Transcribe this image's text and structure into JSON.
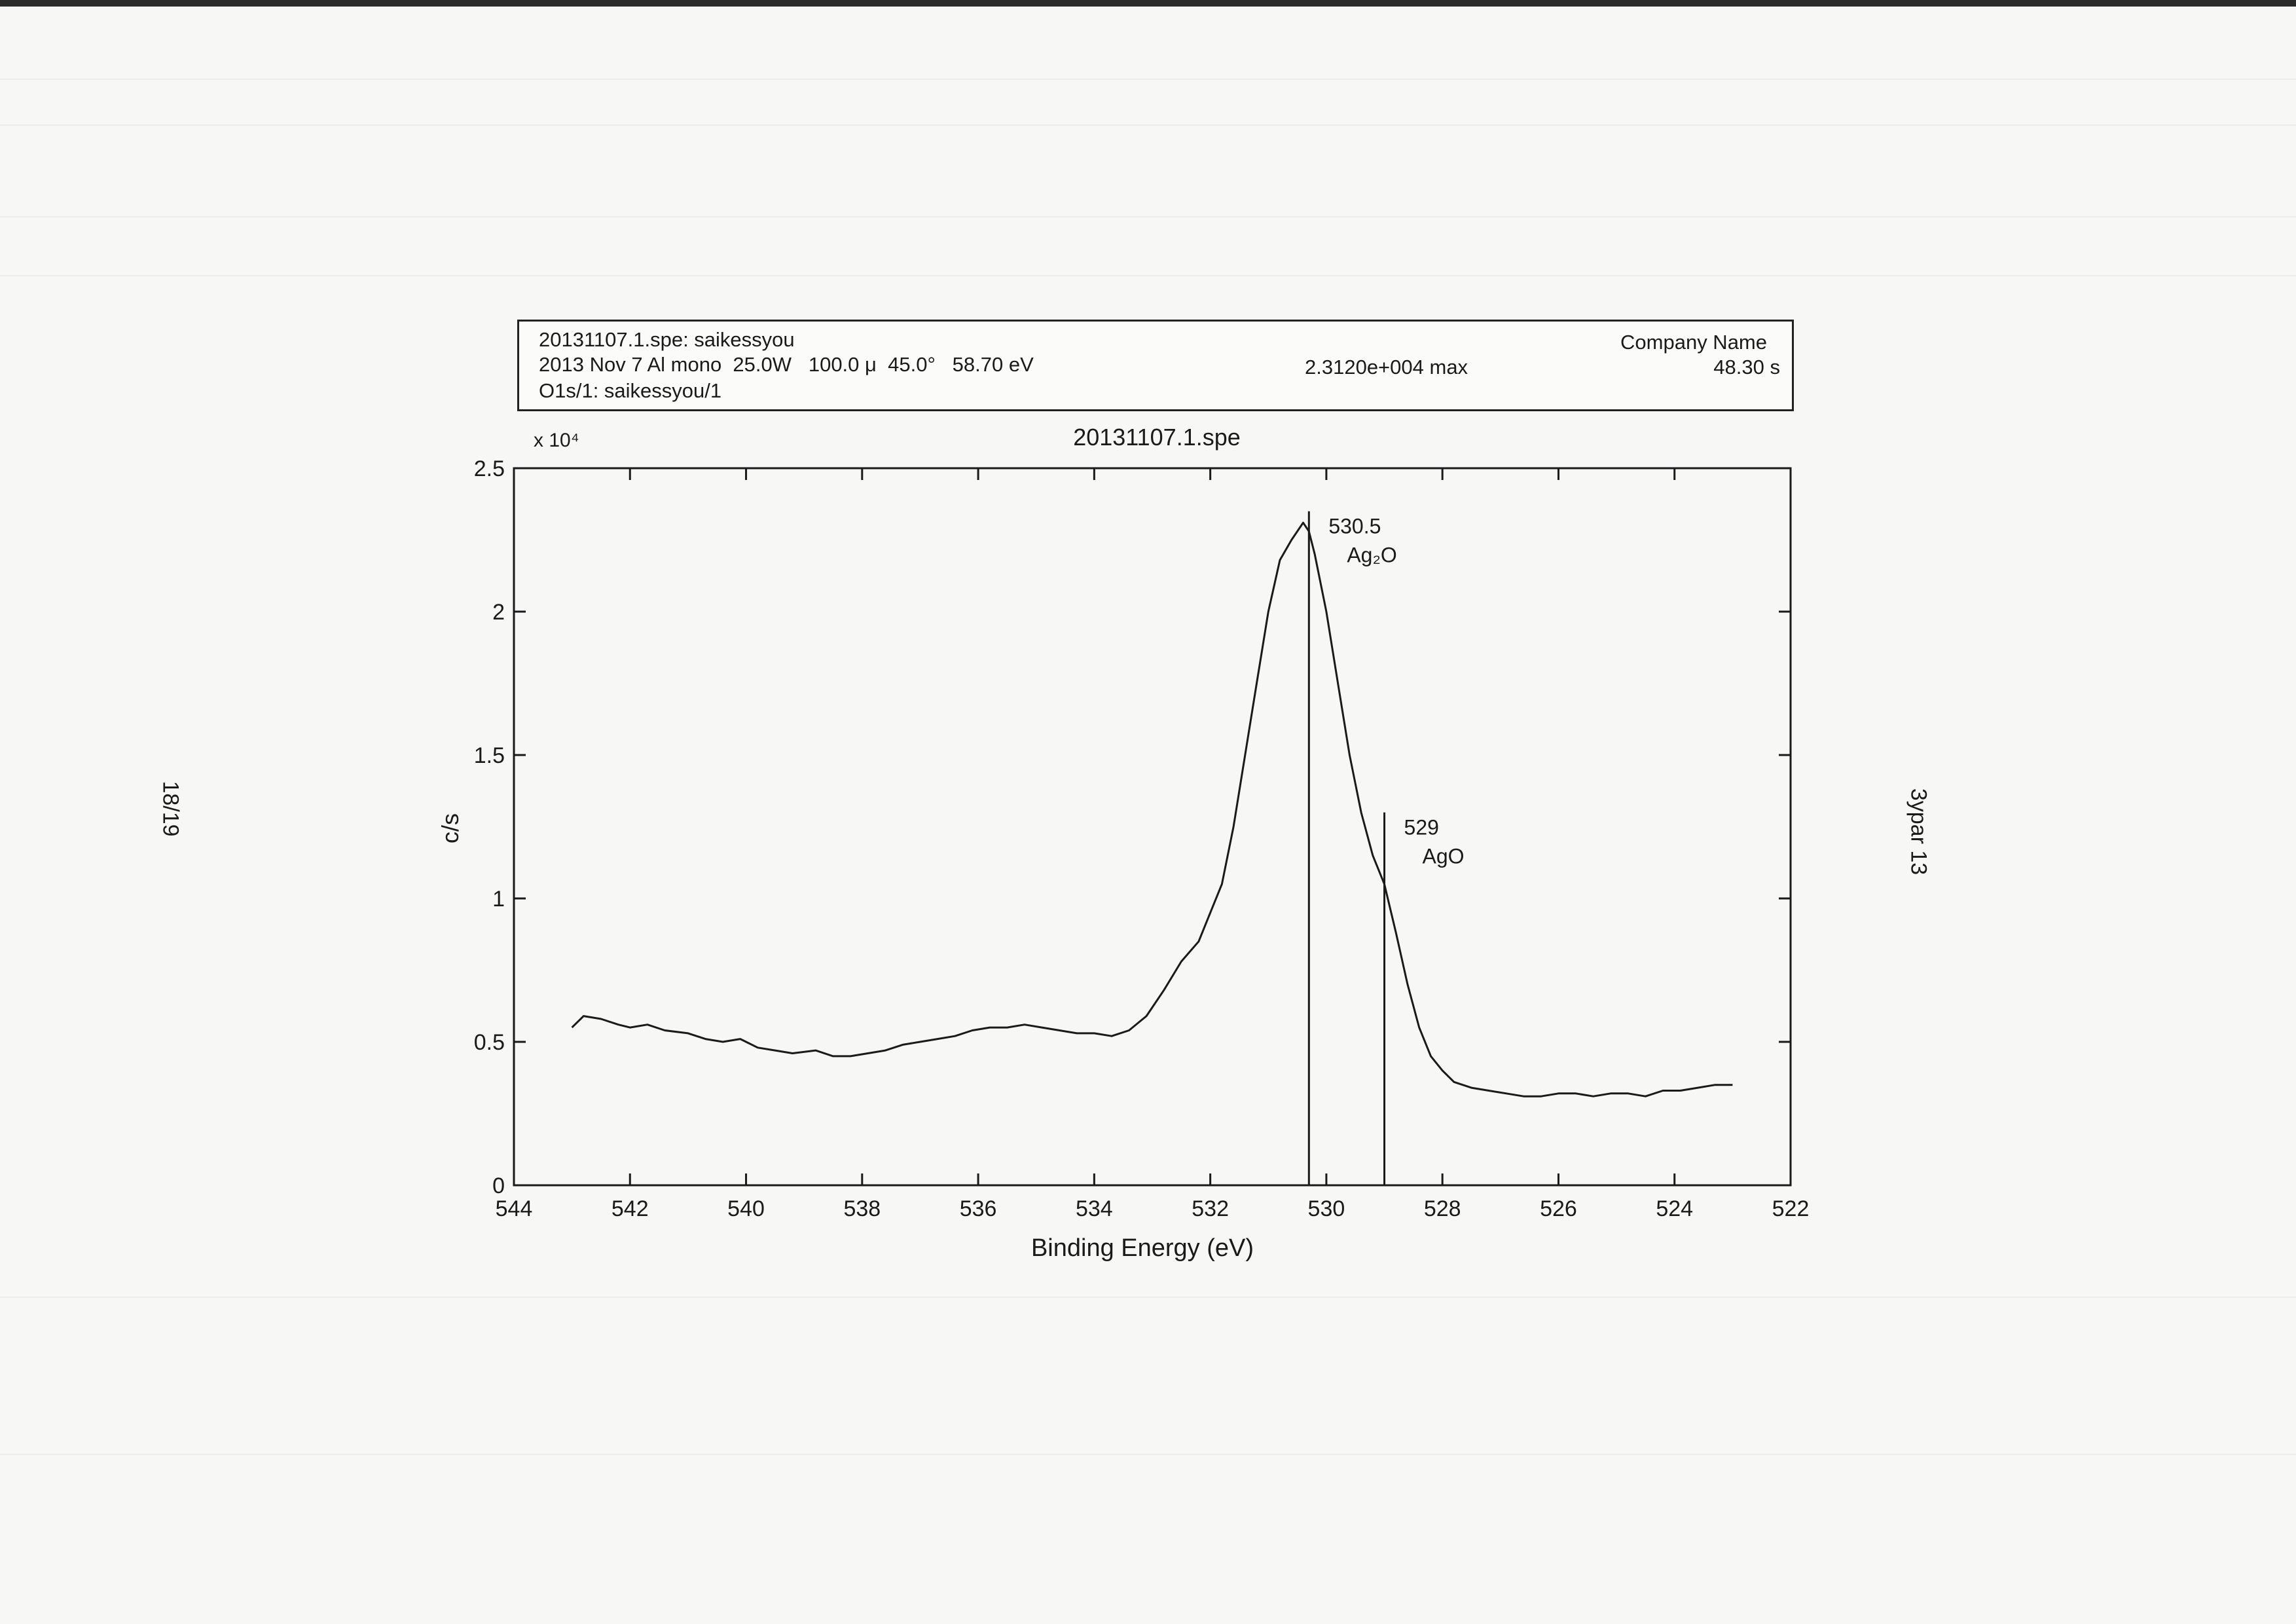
{
  "header": {
    "file_line": "20131107.1.spe: saikessyou",
    "acq_line": "2013 Nov 7 Al mono  25.0W   100.0 μ  45.0°   58.70 eV",
    "region_line": "O1s/1: saikessyou/1",
    "max_text": "2.3120e+004 max",
    "company": "Company Name",
    "time": "48.30 s"
  },
  "page_marks": {
    "left": "18/19",
    "right": "3ypar 13"
  },
  "chart_data": {
    "type": "line",
    "title": "20131107.1.spe",
    "xlabel": "Binding Energy (eV)",
    "ylabel": "c/s",
    "y_multiplier": "x 10⁴",
    "xlim": [
      544,
      522
    ],
    "ylim": [
      0,
      25000
    ],
    "x_ticks": [
      544,
      542,
      540,
      538,
      536,
      534,
      532,
      530,
      528,
      526,
      524,
      522
    ],
    "y_ticks": [
      0,
      5000,
      10000,
      15000,
      20000,
      25000
    ],
    "y_tick_labels": [
      "0",
      "0.5",
      "1",
      "1.5",
      "2",
      "2.5"
    ],
    "series": [
      {
        "x": [
          543.0,
          542.8,
          542.5,
          542.2,
          542.0,
          541.7,
          541.4,
          541.0,
          540.7,
          540.4,
          540.1,
          539.8,
          539.5,
          539.2,
          538.8,
          538.5,
          538.2,
          537.9,
          537.6,
          537.3,
          537.0,
          536.7,
          536.4,
          536.1,
          535.8,
          535.5,
          535.2,
          534.9,
          534.6,
          534.3,
          534.0,
          533.7,
          533.4,
          533.1,
          532.8,
          532.5,
          532.2,
          532.0,
          531.8,
          531.6,
          531.4,
          531.2,
          531.0,
          530.8,
          530.6,
          530.4,
          530.3,
          530.2,
          530.0,
          529.8,
          529.6,
          529.4,
          529.2,
          529.0,
          528.8,
          528.6,
          528.4,
          528.2,
          528.0,
          527.8,
          527.5,
          527.2,
          526.9,
          526.6,
          526.3,
          526.0,
          525.7,
          525.4,
          525.1,
          524.8,
          524.5,
          524.2,
          523.9,
          523.6,
          523.3,
          523.0
        ],
        "y": [
          5500,
          5900,
          5800,
          5600,
          5500,
          5600,
          5400,
          5300,
          5100,
          5000,
          5100,
          4800,
          4700,
          4600,
          4700,
          4500,
          4500,
          4600,
          4700,
          4900,
          5000,
          5100,
          5200,
          5400,
          5500,
          5500,
          5600,
          5500,
          5400,
          5300,
          5300,
          5200,
          5400,
          5900,
          6800,
          7800,
          8500,
          9500,
          10500,
          12500,
          15000,
          17500,
          20000,
          21800,
          22500,
          23100,
          22800,
          22000,
          20000,
          17500,
          15000,
          13000,
          11500,
          10500,
          8800,
          7000,
          5500,
          4500,
          4000,
          3600,
          3400,
          3300,
          3200,
          3100,
          3100,
          3200,
          3200,
          3100,
          3200,
          3200,
          3100,
          3300,
          3300,
          3400,
          3500,
          3500
        ]
      }
    ],
    "markers": [
      {
        "x": 530.3,
        "y_top": 23500,
        "value_label": "530.5",
        "species_label": "Ag₂O"
      },
      {
        "x": 529.0,
        "y_top": 13000,
        "value_label": "529",
        "species_label": "AgO"
      }
    ],
    "grid": false
  }
}
